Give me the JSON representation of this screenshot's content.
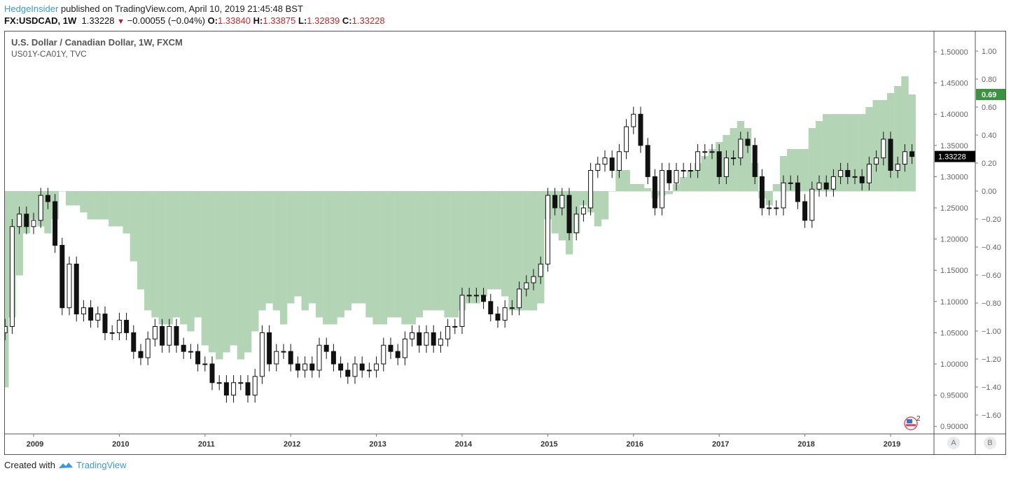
{
  "header": {
    "author": "HedgeInsider",
    "published": "published on TradingView.com, April 10, 2019 21:45:48 BST",
    "symbol": "FX:USDCAD, 1W",
    "last": "1.33228",
    "change": "−0.00055 (−0.04%)",
    "o_label": "O:",
    "o": "1.33840",
    "h_label": "H:",
    "h": "1.33875",
    "l_label": "L:",
    "l": "1.32839",
    "c_label": "C:",
    "c": "1.33228"
  },
  "legend": {
    "main": "U.S. Dollar / Canadian Dollar, 1W, FXCM",
    "overlay": "US01Y-CA01Y, TVC"
  },
  "footer": {
    "text": "Created with",
    "brand": "TradingView"
  },
  "scale_buttons": {
    "a": "A",
    "b": "B"
  },
  "event_badge": {
    "count": "2",
    "icon": "us-flag-event-icon"
  },
  "colors": {
    "area": "#b3d4b5",
    "candle": "#111111",
    "spread_label": "#3b933f",
    "price_label": "#000000",
    "down": "#b71c1c"
  },
  "chart_data": {
    "type": "candlestick+area",
    "x_start": "2008-09",
    "x_step": "1 month",
    "x_ticks": [
      "2009",
      "2010",
      "2011",
      "2012",
      "2013",
      "2014",
      "2015",
      "2016",
      "2017",
      "2018",
      "2019"
    ],
    "price": {
      "name": "U.S. Dollar / Canadian Dollar, 1W, FXCM",
      "ylim": [
        0.88,
        1.52
      ],
      "ticks": [
        "1.50000",
        "1.45000",
        "1.40000",
        "1.35000",
        "1.30000",
        "1.25000",
        "1.20000",
        "1.15000",
        "1.10000",
        "1.05000",
        "1.00000",
        "0.95000",
        "0.90000"
      ],
      "last_label": "1.33228",
      "close": [
        1.06,
        1.22,
        1.24,
        1.22,
        1.23,
        1.27,
        1.26,
        1.19,
        1.09,
        1.16,
        1.08,
        1.09,
        1.07,
        1.08,
        1.05,
        1.05,
        1.07,
        1.05,
        1.02,
        1.01,
        1.04,
        1.06,
        1.03,
        1.06,
        1.03,
        1.02,
        1.02,
        1.0,
        1.0,
        0.97,
        0.97,
        0.95,
        0.97,
        0.97,
        0.95,
        0.98,
        1.05,
        1.0,
        1.02,
        1.02,
        1.0,
        0.99,
        1.0,
        0.99,
        1.03,
        1.02,
        1.0,
        0.99,
        0.98,
        1.0,
        0.99,
        0.99,
        1.0,
        1.03,
        1.02,
        1.01,
        1.04,
        1.05,
        1.03,
        1.05,
        1.03,
        1.04,
        1.06,
        1.06,
        1.11,
        1.11,
        1.11,
        1.1,
        1.08,
        1.07,
        1.09,
        1.09,
        1.12,
        1.13,
        1.14,
        1.16,
        1.27,
        1.25,
        1.27,
        1.21,
        1.24,
        1.25,
        1.31,
        1.32,
        1.33,
        1.31,
        1.34,
        1.38,
        1.4,
        1.35,
        1.3,
        1.25,
        1.31,
        1.29,
        1.31,
        1.31,
        1.31,
        1.34,
        1.34,
        1.34,
        1.3,
        1.33,
        1.33,
        1.36,
        1.35,
        1.3,
        1.25,
        1.25,
        1.25,
        1.29,
        1.29,
        1.26,
        1.23,
        1.28,
        1.29,
        1.28,
        1.3,
        1.31,
        1.3,
        1.3,
        1.29,
        1.32,
        1.33,
        1.36,
        1.31,
        1.32,
        1.34,
        1.33228
      ]
    },
    "spread": {
      "name": "US01Y-CA01Y, TVC",
      "ylim": [
        -1.72,
        1.08
      ],
      "ticks": [
        "1.00",
        "0.80",
        "0.60",
        "0.40",
        "0.20",
        "0.00",
        "−0.20",
        "−0.40",
        "−0.60",
        "−0.80",
        "−1.00",
        "−1.20",
        "−1.40",
        "−1.60"
      ],
      "last_label": "0.69",
      "values": [
        -1.4,
        -0.9,
        -0.6,
        -0.3,
        -0.2,
        -0.25,
        -0.3,
        -0.2,
        0.0,
        -0.1,
        -0.1,
        -0.15,
        -0.2,
        -0.2,
        -0.2,
        -0.25,
        -0.25,
        -0.3,
        -0.5,
        -0.7,
        -0.85,
        -0.9,
        -0.95,
        -0.95,
        -0.9,
        -0.95,
        -1.0,
        -0.9,
        -1.1,
        -1.15,
        -1.2,
        -1.15,
        -1.1,
        -1.2,
        -1.15,
        -1.0,
        -0.85,
        -0.8,
        -0.85,
        -0.95,
        -0.8,
        -0.75,
        -0.85,
        -0.8,
        -0.9,
        -0.95,
        -0.95,
        -0.9,
        -0.85,
        -0.8,
        -0.8,
        -0.9,
        -0.95,
        -0.95,
        -0.9,
        -0.9,
        -0.95,
        -0.95,
        -0.9,
        -0.85,
        -0.85,
        -0.85,
        -0.9,
        -0.9,
        -0.85,
        -0.8,
        -0.8,
        -0.75,
        -0.7,
        -0.7,
        -0.75,
        -0.85,
        -0.85,
        -0.85,
        -0.85,
        -0.8,
        -0.2,
        -0.3,
        -0.35,
        -0.45,
        -0.3,
        -0.1,
        -0.15,
        -0.25,
        -0.2,
        0.0,
        0.15,
        0.15,
        0.05,
        0.05,
        0.02,
        -0.05,
        -0.03,
        -0.02,
        0.05,
        0.1,
        0.15,
        0.2,
        0.25,
        0.3,
        0.35,
        0.4,
        0.45,
        0.5,
        0.45,
        0.2,
        -0.05,
        -0.1,
        0.05,
        0.25,
        0.3,
        0.3,
        0.3,
        0.45,
        0.5,
        0.55,
        0.55,
        0.55,
        0.55,
        0.55,
        0.55,
        0.6,
        0.65,
        0.65,
        0.7,
        0.75,
        0.82,
        0.69
      ]
    }
  }
}
